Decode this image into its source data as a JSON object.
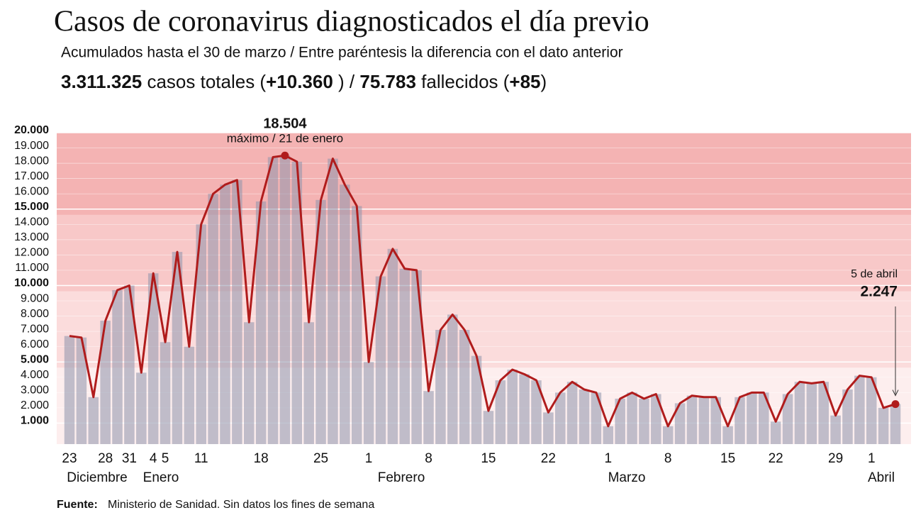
{
  "chart_data": {
    "type": "bar-line",
    "title": "Casos de coronavirus diagnosticados el día previo",
    "subtitle": "Acumulados hasta el 30 de marzo / Entre paréntesis la diferencia con el dato anterior",
    "summary": [
      {
        "text": "3.311.325",
        "bold": true
      },
      {
        "text": " casos totales (",
        "bold": false
      },
      {
        "text": "+10.360",
        "bold": true
      },
      {
        "text": " ) / ",
        "bold": false
      },
      {
        "text": "75.783",
        "bold": true
      },
      {
        "text": " fallecidos (",
        "bold": false
      },
      {
        "text": "+85",
        "bold": true
      },
      {
        "text": ")",
        "bold": false
      }
    ],
    "categories": [
      "23",
      null,
      null,
      "28",
      null,
      "31",
      null,
      "4",
      "5",
      null,
      null,
      "11",
      null,
      null,
      null,
      null,
      "18",
      null,
      null,
      null,
      null,
      "25",
      null,
      null,
      null,
      "1",
      null,
      null,
      null,
      null,
      "8",
      null,
      null,
      null,
      null,
      "15",
      null,
      null,
      null,
      null,
      "22",
      null,
      null,
      null,
      null,
      "1",
      null,
      null,
      null,
      null,
      "8",
      null,
      null,
      null,
      null,
      "15",
      null,
      null,
      null,
      "22",
      null,
      null,
      null,
      null,
      "29",
      null,
      null,
      "1",
      null,
      null
    ],
    "months": [
      "Diciembre",
      "Enero",
      "Febrero",
      "Marzo",
      "Abril"
    ],
    "values": [
      6700,
      6600,
      2700,
      7700,
      9700,
      10000,
      4300,
      10800,
      6300,
      12200,
      6000,
      14000,
      16000,
      16600,
      16900,
      7600,
      15500,
      18400,
      18504,
      18100,
      7600,
      15600,
      18300,
      16600,
      15200,
      5000,
      10600,
      12400,
      11100,
      11000,
      3100,
      7100,
      8100,
      7100,
      5400,
      1800,
      3800,
      4500,
      4200,
      3800,
      1700,
      3000,
      3700,
      3200,
      3000,
      800,
      2600,
      3000,
      2600,
      2900,
      800,
      2300,
      2800,
      2700,
      2700,
      800,
      2700,
      3000,
      3000,
      1100,
      2900,
      3700,
      3600,
      3700,
      1500,
      3200,
      4100,
      4000,
      2000,
      2247
    ],
    "value_labels": [
      null,
      null,
      null,
      null,
      null,
      null,
      null,
      null,
      null,
      null,
      null,
      null,
      null,
      null,
      null,
      null,
      null,
      null,
      "18.504",
      null,
      null,
      null,
      null,
      null,
      null,
      null,
      null,
      null,
      null,
      null,
      null,
      null,
      null,
      null,
      null,
      null,
      null,
      null,
      null,
      null,
      null,
      null,
      null,
      null,
      null,
      null,
      null,
      null,
      null,
      null,
      null,
      null,
      null,
      null,
      null,
      null,
      null,
      null,
      null,
      null,
      null,
      null,
      null,
      null,
      null,
      null,
      null,
      null,
      null,
      "2.247"
    ],
    "annotations": [
      "máximo / 21 de enero",
      "5 de abril"
    ],
    "line_color": "#b01c1c",
    "bar_color": "#8e94ab",
    "bands": [
      {
        "from": 0,
        "to": 5000,
        "color": "#fdeeee"
      },
      {
        "from": 5000,
        "to": 10000,
        "color": "#fbdcdc"
      },
      {
        "from": 10000,
        "to": 15000,
        "color": "#f8c8c8"
      },
      {
        "from": 15000,
        "to": 20000,
        "color": "#f4b3b3"
      }
    ],
    "ylim": [
      0,
      20000
    ],
    "yticks": [
      {
        "value": 1000,
        "label": "1.000"
      },
      {
        "value": 2000,
        "label": "2.000"
      },
      {
        "value": 3000,
        "label": "3.000"
      },
      {
        "value": 4000,
        "label": "4.000"
      },
      {
        "value": 5000,
        "label": "5.000"
      },
      {
        "value": 6000,
        "label": "6.000"
      },
      {
        "value": 7000,
        "label": "7.000"
      },
      {
        "value": 8000,
        "label": "8.000"
      },
      {
        "value": 9000,
        "label": "9.000"
      },
      {
        "value": 10000,
        "label": "10.000"
      },
      {
        "value": 11000,
        "label": "11.000"
      },
      {
        "value": 12000,
        "label": "12.000"
      },
      {
        "value": 13000,
        "label": "13.000"
      },
      {
        "value": 14000,
        "label": "14.000"
      },
      {
        "value": 15000,
        "label": "15.000"
      },
      {
        "value": 16000,
        "label": "16.000"
      },
      {
        "value": 17000,
        "label": "17.000"
      },
      {
        "value": 18000,
        "label": "18.000"
      },
      {
        "value": 19000,
        "label": "19.000"
      },
      {
        "value": 20000,
        "label": "20.000"
      }
    ],
    "grid": true,
    "source_label": "Fuente:",
    "source": "Ministerio de Sanidad. Sin datos los fines de semana"
  }
}
